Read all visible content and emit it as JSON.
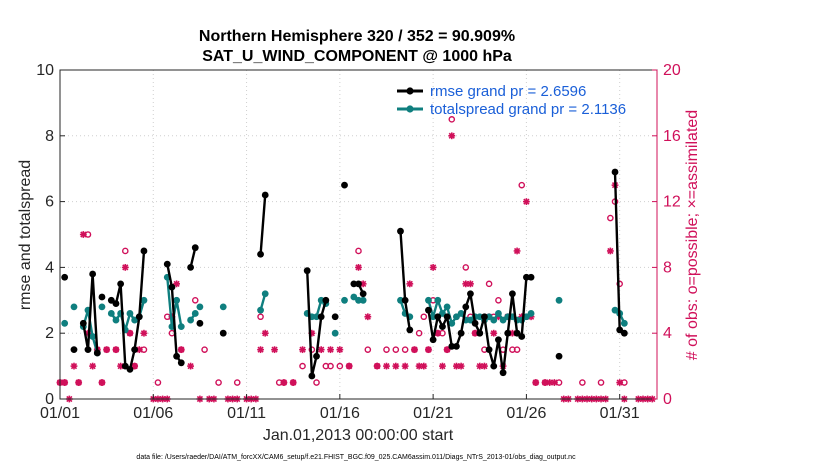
{
  "chart_data": {
    "type": "line",
    "title": "Northern Hemisphere 320 / 352 = 90.909%",
    "subtitle": "SAT_U_WIND_COMPONENT @ 1000 hPa",
    "xlabel": "Jan.01,2013 00:00:00 start",
    "ylabel": "rmse and totalspread",
    "ylabel_right": "# of obs: o=possible; ×=assimilated",
    "footnote": "data file: /Users/raeder/DAI/ATM_forcXX/CAM6_setup/f.e21.FHIST_BGC.f09_025.CAM6assim.011/Diags_NTrS_2013-01/obs_diag_output.nc",
    "xlim": [
      0,
      32
    ],
    "ylim": [
      0,
      10
    ],
    "ylim_right": [
      0,
      20
    ],
    "xticks": [
      0,
      5,
      10,
      15,
      20,
      25,
      30
    ],
    "xtick_labels": [
      "01/01",
      "01/06",
      "01/11",
      "01/16",
      "01/21",
      "01/26",
      "01/31"
    ],
    "yticks": [
      "0",
      "2",
      "4",
      "6",
      "8",
      "10"
    ],
    "yticks_right": [
      "0",
      "4",
      "8",
      "12",
      "16",
      "20"
    ],
    "legend": [
      "rmse grand pr = 2.6596",
      "totalspread grand pr = 2.1136"
    ],
    "colors": {
      "rmse": "#000000",
      "totalspread": "#0f7f7f",
      "obs": "#d0105a",
      "legend_text": "#1a5fd8"
    },
    "series": [
      {
        "name": "rmse",
        "segments": [
          [
            [
              0.25,
              3.7
            ]
          ],
          [
            [
              0.75,
              1.5
            ]
          ],
          [
            [
              1.25,
              2.3
            ],
            [
              1.5,
              1.5
            ],
            [
              1.75,
              3.8
            ],
            [
              2.0,
              1.4
            ]
          ],
          [
            [
              2.25,
              3.1
            ]
          ],
          [
            [
              2.75,
              3.0
            ],
            [
              3.0,
              2.9
            ],
            [
              3.25,
              3.5
            ],
            [
              3.5,
              1.0
            ],
            [
              3.75,
              0.9
            ],
            [
              4.0,
              1.5
            ],
            [
              4.25,
              2.5
            ],
            [
              4.5,
              4.5
            ]
          ],
          [
            [
              5.75,
              4.1
            ],
            [
              6.0,
              3.4
            ],
            [
              6.25,
              1.3
            ],
            [
              6.5,
              1.1
            ]
          ],
          [
            [
              7.0,
              4.0
            ],
            [
              7.25,
              4.6
            ]
          ],
          [
            [
              7.5,
              2.3
            ]
          ],
          [
            [
              8.75,
              2.0
            ]
          ],
          [
            [
              10.75,
              4.4
            ],
            [
              11.0,
              6.2
            ]
          ],
          [
            [
              13.25,
              3.9
            ],
            [
              13.5,
              0.7
            ],
            [
              13.75,
              1.3
            ],
            [
              14.0,
              2.5
            ],
            [
              14.25,
              3.0
            ]
          ],
          [
            [
              14.75,
              2.5
            ]
          ],
          [
            [
              15.25,
              6.5
            ]
          ],
          [
            [
              15.75,
              3.5
            ],
            [
              16.0,
              3.5
            ],
            [
              16.25,
              3.2
            ]
          ],
          [
            [
              18.25,
              5.1
            ],
            [
              18.5,
              3.0
            ],
            [
              18.75,
              2.1
            ]
          ],
          [
            [
              19.75,
              2.7
            ],
            [
              20.0,
              1.8
            ],
            [
              20.25,
              2.5
            ],
            [
              20.5,
              2.2
            ],
            [
              20.75,
              2.5
            ],
            [
              21.0,
              1.6
            ],
            [
              21.25,
              1.6
            ],
            [
              21.5,
              2.0
            ],
            [
              21.75,
              2.8
            ],
            [
              22.0,
              3.2
            ],
            [
              22.25,
              2.3
            ],
            [
              22.5,
              2.0
            ],
            [
              22.75,
              2.5
            ],
            [
              23.0,
              1.5
            ],
            [
              23.25,
              1.0
            ],
            [
              23.5,
              1.8
            ],
            [
              23.75,
              0.8
            ],
            [
              24.0,
              2.0
            ],
            [
              24.25,
              3.2
            ],
            [
              24.5,
              2.0
            ],
            [
              24.75,
              1.9
            ],
            [
              25.0,
              3.7
            ],
            [
              25.25,
              3.7
            ]
          ],
          [
            [
              26.75,
              1.3
            ]
          ],
          [
            [
              29.75,
              6.9
            ],
            [
              30.0,
              2.1
            ],
            [
              30.25,
              2.0
            ]
          ]
        ]
      },
      {
        "name": "totalspread",
        "segments": [
          [
            [
              0.25,
              2.3
            ]
          ],
          [
            [
              0.75,
              2.8
            ]
          ],
          [
            [
              1.25,
              2.2
            ],
            [
              1.5,
              2.7
            ],
            [
              1.75,
              1.9
            ],
            [
              2.0,
              1.4
            ]
          ],
          [
            [
              2.25,
              2.8
            ]
          ],
          [
            [
              2.75,
              2.6
            ],
            [
              3.0,
              2.4
            ],
            [
              3.25,
              2.6
            ],
            [
              3.5,
              2.1
            ],
            [
              3.75,
              2.6
            ],
            [
              4.0,
              2.4
            ],
            [
              4.25,
              2.5
            ],
            [
              4.5,
              3.0
            ]
          ],
          [
            [
              5.75,
              3.7
            ],
            [
              6.0,
              2.2
            ],
            [
              6.25,
              3.0
            ],
            [
              6.5,
              2.2
            ]
          ],
          [
            [
              7.0,
              2.4
            ],
            [
              7.25,
              2.6
            ]
          ],
          [
            [
              7.5,
              2.8
            ]
          ],
          [
            [
              8.75,
              2.8
            ]
          ],
          [
            [
              10.75,
              2.7
            ],
            [
              11.0,
              3.2
            ]
          ],
          [
            [
              13.25,
              2.6
            ],
            [
              13.5,
              2.5
            ],
            [
              13.75,
              2.5
            ],
            [
              14.0,
              3.0
            ],
            [
              14.25,
              2.9
            ]
          ],
          [
            [
              14.75,
              2.0
            ]
          ],
          [
            [
              15.25,
              3.0
            ]
          ],
          [
            [
              15.75,
              3.1
            ],
            [
              16.0,
              3.0
            ],
            [
              16.25,
              3.0
            ]
          ],
          [
            [
              18.25,
              3.0
            ],
            [
              18.5,
              2.6
            ],
            [
              18.75,
              2.5
            ]
          ],
          [
            [
              19.75,
              3.0
            ],
            [
              20.0,
              2.5
            ],
            [
              20.25,
              3.0
            ],
            [
              20.5,
              2.6
            ],
            [
              20.75,
              2.8
            ],
            [
              21.0,
              2.3
            ],
            [
              21.25,
              2.5
            ],
            [
              21.5,
              2.6
            ],
            [
              21.75,
              2.4
            ],
            [
              22.0,
              2.4
            ],
            [
              22.25,
              2.5
            ],
            [
              22.5,
              2.5
            ],
            [
              22.75,
              2.4
            ],
            [
              23.0,
              2.5
            ],
            [
              23.25,
              2.4
            ],
            [
              23.5,
              2.6
            ],
            [
              23.75,
              2.4
            ],
            [
              24.0,
              2.5
            ],
            [
              24.25,
              2.5
            ],
            [
              24.5,
              2.4
            ],
            [
              24.75,
              2.4
            ],
            [
              25.0,
              2.5
            ],
            [
              25.25,
              2.6
            ]
          ],
          [
            [
              26.75,
              3.0
            ]
          ],
          [
            [
              29.75,
              2.7
            ],
            [
              30.0,
              2.6
            ],
            [
              30.25,
              2.3
            ]
          ]
        ]
      }
    ],
    "obs_possible": [
      [
        0.0,
        1
      ],
      [
        0.25,
        1
      ],
      [
        1.0,
        1
      ],
      [
        1.5,
        10
      ],
      [
        2.0,
        3
      ],
      [
        2.25,
        1
      ],
      [
        2.5,
        3
      ],
      [
        3.0,
        3
      ],
      [
        3.5,
        9
      ],
      [
        3.75,
        4
      ],
      [
        4.0,
        2
      ],
      [
        4.5,
        3
      ],
      [
        5.25,
        1
      ],
      [
        5.75,
        5
      ],
      [
        6.0,
        4
      ],
      [
        6.25,
        6
      ],
      [
        6.5,
        3
      ],
      [
        7.25,
        6
      ],
      [
        7.75,
        3
      ],
      [
        8.5,
        1
      ],
      [
        9.5,
        1
      ],
      [
        10.75,
        5
      ],
      [
        11.75,
        1
      ],
      [
        12.0,
        1
      ],
      [
        12.5,
        1
      ],
      [
        13.0,
        2
      ],
      [
        13.5,
        3
      ],
      [
        13.75,
        1
      ],
      [
        14.25,
        2
      ],
      [
        14.5,
        2
      ],
      [
        15.0,
        2
      ],
      [
        15.5,
        2
      ],
      [
        16.0,
        9
      ],
      [
        16.5,
        3
      ],
      [
        17.0,
        2
      ],
      [
        17.5,
        3
      ],
      [
        18.0,
        3
      ],
      [
        18.5,
        3
      ],
      [
        19.0,
        3
      ],
      [
        19.25,
        4
      ],
      [
        19.5,
        5
      ],
      [
        19.75,
        3
      ],
      [
        20.0,
        6
      ],
      [
        20.25,
        4
      ],
      [
        20.5,
        4
      ],
      [
        20.75,
        3
      ],
      [
        21.0,
        17
      ],
      [
        21.25,
        5
      ],
      [
        21.75,
        8
      ],
      [
        22.0,
        5
      ],
      [
        22.25,
        4
      ],
      [
        22.5,
        4
      ],
      [
        22.75,
        3
      ],
      [
        23.0,
        7
      ],
      [
        23.25,
        5
      ],
      [
        23.5,
        6
      ],
      [
        23.75,
        3
      ],
      [
        24.0,
        5
      ],
      [
        24.25,
        3
      ],
      [
        24.5,
        3
      ],
      [
        24.75,
        13
      ],
      [
        25.0,
        5
      ],
      [
        25.5,
        1
      ],
      [
        26.0,
        1
      ],
      [
        26.75,
        1
      ],
      [
        28.0,
        1
      ],
      [
        29.0,
        1
      ],
      [
        29.5,
        11
      ],
      [
        29.75,
        12
      ],
      [
        30.0,
        7
      ],
      [
        30.25,
        1
      ]
    ],
    "obs_assimilated": [
      [
        0.0,
        1
      ],
      [
        0.25,
        1
      ],
      [
        0.5,
        0
      ],
      [
        0.75,
        2
      ],
      [
        1.0,
        1
      ],
      [
        1.25,
        10
      ],
      [
        1.5,
        4
      ],
      [
        1.75,
        2
      ],
      [
        2.0,
        3
      ],
      [
        2.25,
        1
      ],
      [
        2.5,
        3
      ],
      [
        3.0,
        3
      ],
      [
        3.25,
        2
      ],
      [
        3.5,
        8
      ],
      [
        3.75,
        4
      ],
      [
        4.0,
        2
      ],
      [
        4.25,
        3
      ],
      [
        4.5,
        4
      ],
      [
        5.0,
        0
      ],
      [
        5.25,
        0
      ],
      [
        5.5,
        0
      ],
      [
        5.75,
        0
      ],
      [
        6.0,
        5
      ],
      [
        6.25,
        7
      ],
      [
        6.5,
        3
      ],
      [
        7.0,
        2
      ],
      [
        7.5,
        0
      ],
      [
        8.0,
        0
      ],
      [
        8.25,
        0
      ],
      [
        9.0,
        0
      ],
      [
        9.25,
        0
      ],
      [
        9.5,
        0
      ],
      [
        10.0,
        0
      ],
      [
        10.25,
        0
      ],
      [
        10.5,
        0
      ],
      [
        10.75,
        3
      ],
      [
        11.0,
        4
      ],
      [
        11.5,
        3
      ],
      [
        12.0,
        1
      ],
      [
        12.5,
        1
      ],
      [
        13.0,
        3
      ],
      [
        13.5,
        4
      ],
      [
        14.0,
        3
      ],
      [
        14.5,
        3
      ],
      [
        15.0,
        3
      ],
      [
        15.5,
        2
      ],
      [
        16.0,
        8
      ],
      [
        16.25,
        7
      ],
      [
        16.5,
        5
      ],
      [
        17.0,
        2
      ],
      [
        17.5,
        2
      ],
      [
        18.0,
        2
      ],
      [
        18.5,
        2
      ],
      [
        18.75,
        7
      ],
      [
        19.0,
        3
      ],
      [
        19.25,
        2
      ],
      [
        19.5,
        2
      ],
      [
        19.75,
        3
      ],
      [
        20.0,
        8
      ],
      [
        20.25,
        4
      ],
      [
        20.5,
        2
      ],
      [
        20.75,
        3
      ],
      [
        21.0,
        16
      ],
      [
        21.25,
        2
      ],
      [
        21.5,
        2
      ],
      [
        21.75,
        7
      ],
      [
        22.0,
        7
      ],
      [
        22.25,
        4
      ],
      [
        22.5,
        2
      ],
      [
        22.75,
        2
      ],
      [
        23.0,
        5
      ],
      [
        23.25,
        4
      ],
      [
        23.5,
        5
      ],
      [
        23.75,
        2
      ],
      [
        24.0,
        5
      ],
      [
        24.25,
        4
      ],
      [
        24.5,
        9
      ],
      [
        24.75,
        5
      ],
      [
        25.0,
        12
      ],
      [
        25.25,
        5
      ],
      [
        25.5,
        1
      ],
      [
        26.0,
        1
      ],
      [
        26.25,
        1
      ],
      [
        26.5,
        1
      ],
      [
        27.0,
        0
      ],
      [
        27.25,
        0
      ],
      [
        27.75,
        0
      ],
      [
        28.0,
        0
      ],
      [
        28.25,
        0
      ],
      [
        28.5,
        0
      ],
      [
        28.75,
        0
      ],
      [
        29.0,
        0
      ],
      [
        29.25,
        0
      ],
      [
        29.5,
        9
      ],
      [
        29.75,
        13
      ],
      [
        30.0,
        1
      ],
      [
        30.25,
        0
      ],
      [
        31.0,
        0
      ],
      [
        31.25,
        0
      ],
      [
        31.5,
        0
      ],
      [
        31.75,
        0
      ]
    ]
  }
}
